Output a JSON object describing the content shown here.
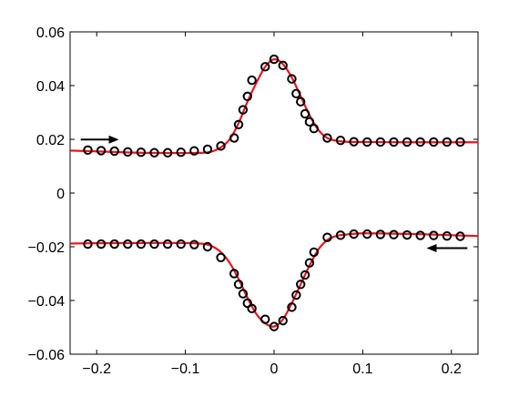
{
  "chart_data": {
    "type": "line",
    "title": "",
    "xlabel": "",
    "ylabel": "",
    "xlim": [
      -0.23,
      0.23
    ],
    "ylim": [
      -0.06,
      0.06
    ],
    "grid": false,
    "legend": "none",
    "x_ticks": [
      -0.2,
      -0.1,
      0,
      0.1,
      0.2
    ],
    "x_tick_labels": [
      "−0.2",
      "−0.1",
      "0",
      "0.1",
      "0.2"
    ],
    "y_ticks": [
      -0.06,
      -0.04,
      -0.02,
      0,
      0.02,
      0.04,
      0.06
    ],
    "y_tick_labels": [
      "−0.06",
      "−0.04",
      "−0.02",
      "0",
      "0.02",
      "0.04",
      "0.06"
    ],
    "colors": {
      "curve": "#e8141c",
      "markers": "#000000",
      "axes": "#000000"
    },
    "series": [
      {
        "role": "upper-curve",
        "style": "line",
        "x": [
          -0.23,
          -0.2,
          -0.15,
          -0.1,
          -0.08,
          -0.07,
          -0.06,
          -0.05,
          -0.04,
          -0.03,
          -0.02,
          -0.01,
          0,
          0.01,
          0.02,
          0.03,
          0.04,
          0.05,
          0.06,
          0.07,
          0.08,
          0.1,
          0.15,
          0.2,
          0.23
        ],
        "values": [
          0.0158,
          0.0155,
          0.015,
          0.0149,
          0.015,
          0.0155,
          0.017,
          0.02,
          0.026,
          0.034,
          0.041,
          0.047,
          0.0498,
          0.048,
          0.043,
          0.036,
          0.029,
          0.0235,
          0.0205,
          0.0195,
          0.0191,
          0.019,
          0.0189,
          0.0189,
          0.0189
        ]
      },
      {
        "role": "upper-markers",
        "style": "markers",
        "x": [
          -0.21,
          -0.195,
          -0.18,
          -0.165,
          -0.15,
          -0.135,
          -0.12,
          -0.105,
          -0.09,
          -0.075,
          -0.06,
          -0.045,
          -0.04,
          -0.035,
          -0.03,
          -0.025,
          -0.01,
          0.0,
          0.01,
          0.02,
          0.025,
          0.03,
          0.035,
          0.04,
          0.045,
          0.06,
          0.075,
          0.09,
          0.105,
          0.12,
          0.135,
          0.15,
          0.165,
          0.18,
          0.195,
          0.21
        ],
        "values": [
          0.016,
          0.0158,
          0.0156,
          0.0153,
          0.0152,
          0.015,
          0.015,
          0.0152,
          0.0157,
          0.0163,
          0.0175,
          0.0205,
          0.0255,
          0.031,
          0.036,
          0.042,
          0.047,
          0.0498,
          0.0475,
          0.0425,
          0.037,
          0.034,
          0.0295,
          0.0265,
          0.024,
          0.0205,
          0.0196,
          0.0191,
          0.019,
          0.019,
          0.019,
          0.019,
          0.019,
          0.019,
          0.019,
          0.019
        ]
      },
      {
        "role": "lower-curve",
        "style": "line",
        "x": [
          -0.23,
          -0.2,
          -0.15,
          -0.1,
          -0.08,
          -0.07,
          -0.06,
          -0.05,
          -0.04,
          -0.03,
          -0.02,
          -0.01,
          0,
          0.01,
          0.02,
          0.03,
          0.04,
          0.05,
          0.06,
          0.07,
          0.08,
          0.1,
          0.15,
          0.2,
          0.23
        ],
        "values": [
          -0.0188,
          -0.0187,
          -0.0186,
          -0.0186,
          -0.0189,
          -0.0198,
          -0.022,
          -0.026,
          -0.032,
          -0.039,
          -0.045,
          -0.0485,
          -0.0497,
          -0.047,
          -0.041,
          -0.034,
          -0.027,
          -0.021,
          -0.0175,
          -0.016,
          -0.0155,
          -0.015,
          -0.0152,
          -0.0157,
          -0.016
        ]
      },
      {
        "role": "lower-markers",
        "style": "markers",
        "x": [
          -0.21,
          -0.195,
          -0.18,
          -0.165,
          -0.15,
          -0.135,
          -0.12,
          -0.105,
          -0.09,
          -0.075,
          -0.06,
          -0.045,
          -0.04,
          -0.035,
          -0.03,
          -0.025,
          -0.01,
          0.0,
          0.01,
          0.02,
          0.025,
          0.03,
          0.035,
          0.04,
          0.045,
          0.06,
          0.075,
          0.09,
          0.105,
          0.12,
          0.135,
          0.15,
          0.165,
          0.18,
          0.195,
          0.21
        ],
        "values": [
          -0.019,
          -0.019,
          -0.019,
          -0.019,
          -0.019,
          -0.019,
          -0.019,
          -0.019,
          -0.0192,
          -0.02,
          -0.024,
          -0.03,
          -0.034,
          -0.0375,
          -0.041,
          -0.043,
          -0.047,
          -0.0497,
          -0.0475,
          -0.0425,
          -0.038,
          -0.034,
          -0.0305,
          -0.026,
          -0.022,
          -0.0165,
          -0.0157,
          -0.0153,
          -0.0153,
          -0.0154,
          -0.0155,
          -0.0156,
          -0.0158,
          -0.0158,
          -0.016,
          -0.0161
        ]
      }
    ],
    "annotations": [
      {
        "role": "arrow-right",
        "x_start": -0.218,
        "x_end": -0.175,
        "y": 0.0199
      },
      {
        "role": "arrow-left",
        "x_start": 0.218,
        "x_end": 0.172,
        "y": -0.0205
      }
    ]
  }
}
